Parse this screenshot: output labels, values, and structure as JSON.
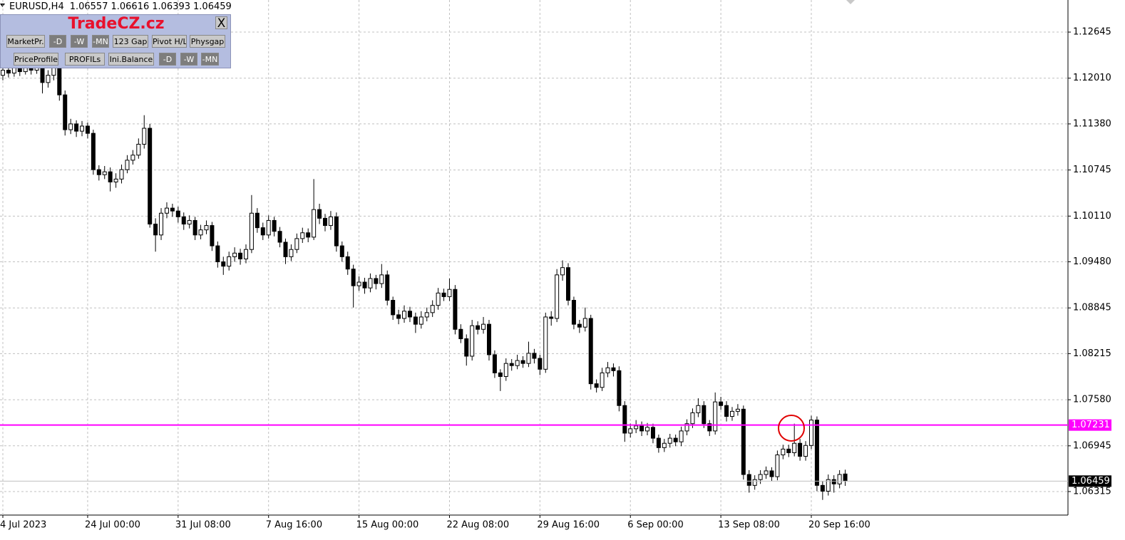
{
  "chart_data": {
    "type": "candlestick",
    "symbol": "EURUSD,H4",
    "ylim": [
      1.05991,
      1.13087
    ],
    "yticks": [
      1.12645,
      {
        "value": 1.1201,
        "label": "1.12010"
      },
      {
        "value": 1.1138,
        "label": "1.11380"
      },
      1.10745,
      {
        "value": 1.1011,
        "label": "1.10110"
      },
      {
        "value": 1.0948,
        "label": "1.09480"
      },
      1.08845,
      1.08215,
      {
        "value": 1.0758,
        "label": "1.07580"
      },
      1.06945,
      1.06315
    ],
    "grid": true,
    "up_color": "#ffffff",
    "down_color": "#000000",
    "outline_color": "#000000",
    "hline": {
      "value": 1.07231,
      "color": "#ff00ff"
    },
    "last_price": {
      "value": 1.06459,
      "color": "#c0c0c0"
    },
    "categories": [
      "4 Jul 2023",
      null,
      null,
      null,
      null,
      null,
      null,
      null,
      null,
      null,
      null,
      null,
      null,
      null,
      null,
      "24 Jul 00:00",
      null,
      null,
      null,
      null,
      null,
      null,
      null,
      null,
      null,
      null,
      null,
      null,
      null,
      null,
      null,
      "31 Jul 08:00",
      null,
      null,
      null,
      null,
      null,
      null,
      null,
      null,
      null,
      null,
      null,
      null,
      null,
      null,
      null,
      "7 Aug 16:00",
      null,
      null,
      null,
      null,
      null,
      null,
      null,
      null,
      null,
      null,
      null,
      null,
      null,
      null,
      null,
      "15 Aug 00:00",
      null,
      null,
      null,
      null,
      null,
      null,
      null,
      null,
      null,
      null,
      null,
      null,
      null,
      null,
      null,
      "22 Aug 08:00",
      null,
      null,
      null,
      null,
      null,
      null,
      null,
      null,
      null,
      null,
      null,
      null,
      null,
      null,
      null,
      "29 Aug 16:00",
      null,
      null,
      null,
      null,
      null,
      null,
      null,
      null,
      null,
      null,
      null,
      null,
      null,
      null,
      null,
      "6 Sep 00:00",
      null,
      null,
      null,
      null,
      null,
      null,
      null,
      null,
      null,
      null,
      null,
      null,
      null,
      null,
      null,
      "13 Sep 08:00",
      null,
      null,
      null,
      null,
      null,
      null,
      null,
      null,
      null,
      null,
      null,
      null,
      null,
      null,
      null,
      "20 Sep 16:00",
      null,
      null,
      null,
      null,
      null,
      null
    ],
    "ohlc": [
      [
        1.1205,
        1.122,
        1.1198,
        1.1212
      ],
      [
        1.1212,
        1.1218,
        1.1202,
        1.1208
      ],
      [
        1.1208,
        1.1222,
        1.1203,
        1.1215
      ],
      [
        1.1215,
        1.1221,
        1.1204,
        1.121
      ],
      [
        1.121,
        1.1226,
        1.1206,
        1.1218
      ],
      [
        1.1218,
        1.1224,
        1.1206,
        1.1212
      ],
      [
        1.1212,
        1.1228,
        1.1207,
        1.122
      ],
      [
        1.122,
        1.1224,
        1.118,
        1.1195
      ],
      [
        1.1195,
        1.1212,
        1.1188,
        1.1205
      ],
      [
        1.1205,
        1.1222,
        1.1198,
        1.1215
      ],
      [
        1.1215,
        1.122,
        1.117,
        1.1178
      ],
      [
        1.1178,
        1.1184,
        1.1122,
        1.113
      ],
      [
        1.113,
        1.1145,
        1.1124,
        1.1138
      ],
      [
        1.1138,
        1.1143,
        1.112,
        1.1128
      ],
      [
        1.1128,
        1.1142,
        1.1121,
        1.1135
      ],
      [
        1.1135,
        1.114,
        1.1118,
        1.1125
      ],
      [
        1.1125,
        1.113,
        1.1068,
        1.1075
      ],
      [
        1.1075,
        1.1081,
        1.106,
        1.1068
      ],
      [
        1.1068,
        1.108,
        1.1062,
        1.1072
      ],
      [
        1.1072,
        1.1078,
        1.1045,
        1.1058
      ],
      [
        1.1058,
        1.107,
        1.105,
        1.1062
      ],
      [
        1.1062,
        1.1082,
        1.1056,
        1.1075
      ],
      [
        1.1075,
        1.1095,
        1.107,
        1.1088
      ],
      [
        1.1088,
        1.1102,
        1.1082,
        1.1095
      ],
      [
        1.1095,
        1.1118,
        1.109,
        1.111
      ],
      [
        1.111,
        1.115,
        1.1104,
        1.1132
      ],
      [
        1.1132,
        1.1138,
        1.0995,
        1.1
      ],
      [
        1.1,
        1.1008,
        1.0962,
        1.0985
      ],
      [
        1.0985,
        1.1022,
        1.0978,
        1.1015
      ],
      [
        1.1015,
        1.103,
        1.1008,
        1.1022
      ],
      [
        1.1022,
        1.1028,
        1.101,
        1.1018
      ],
      [
        1.1018,
        1.1024,
        1.1002,
        1.101
      ],
      [
        1.101,
        1.1016,
        1.0992,
        1.1
      ],
      [
        1.1,
        1.1012,
        1.0994,
        1.1005
      ],
      [
        1.1005,
        1.101,
        1.0978,
        1.0985
      ],
      [
        1.0985,
        1.0999,
        1.0979,
        1.0992
      ],
      [
        1.0992,
        1.1005,
        1.0986,
        1.0998
      ],
      [
        1.0998,
        1.1003,
        1.0963,
        1.097
      ],
      [
        1.097,
        1.0976,
        1.094,
        1.0948
      ],
      [
        1.0948,
        1.0955,
        1.093,
        1.0942
      ],
      [
        1.0942,
        1.0962,
        1.0936,
        1.0955
      ],
      [
        1.0955,
        1.0968,
        1.0948,
        1.096
      ],
      [
        1.096,
        1.0966,
        1.0944,
        1.0952
      ],
      [
        1.0952,
        1.0972,
        1.0946,
        1.0965
      ],
      [
        1.0965,
        1.104,
        1.096,
        1.1015
      ],
      [
        1.1015,
        1.1022,
        1.0988,
        1.0995
      ],
      [
        1.0995,
        1.1002,
        1.0978,
        1.0985
      ],
      [
        1.0985,
        1.1012,
        1.098,
        1.1005
      ],
      [
        1.1005,
        1.101,
        1.0983,
        1.099
      ],
      [
        1.099,
        1.0996,
        1.0968,
        1.0975
      ],
      [
        1.0975,
        1.098,
        1.0945,
        1.0955
      ],
      [
        1.0955,
        1.0972,
        1.0949,
        1.0965
      ],
      [
        1.0965,
        1.0987,
        1.096,
        1.098
      ],
      [
        1.098,
        1.0995,
        1.0974,
        1.0988
      ],
      [
        1.0988,
        1.0994,
        1.0975,
        1.0982
      ],
      [
        1.0982,
        1.1062,
        1.0978,
        1.102
      ],
      [
        1.102,
        1.1028,
        1.1,
        1.1008
      ],
      [
        1.1008,
        1.1014,
        1.099,
        1.0998
      ],
      [
        1.0998,
        1.1018,
        1.0992,
        1.101
      ],
      [
        1.101,
        1.1016,
        1.0962,
        1.097
      ],
      [
        1.097,
        1.0976,
        1.0948,
        1.0955
      ],
      [
        1.0955,
        1.0962,
        1.093,
        1.0938
      ],
      [
        1.0938,
        1.0944,
        1.0885,
        1.0915
      ],
      [
        1.0915,
        1.0928,
        1.0908,
        1.092
      ],
      [
        1.092,
        1.0926,
        1.0904,
        1.0912
      ],
      [
        1.0912,
        1.0932,
        1.0906,
        1.0925
      ],
      [
        1.0925,
        1.093,
        1.091,
        1.0918
      ],
      [
        1.0918,
        1.0945,
        1.0912,
        1.093
      ],
      [
        1.093,
        1.0936,
        1.0888,
        1.0895
      ],
      [
        1.0895,
        1.09,
        1.0868,
        1.0875
      ],
      [
        1.0875,
        1.0882,
        1.0862,
        1.087
      ],
      [
        1.087,
        1.0888,
        1.0864,
        1.088
      ],
      [
        1.088,
        1.0886,
        1.0865,
        1.0872
      ],
      [
        1.0872,
        1.0878,
        1.085,
        1.0862
      ],
      [
        1.0862,
        1.088,
        1.0856,
        1.0872
      ],
      [
        1.0872,
        1.0885,
        1.0866,
        1.0878
      ],
      [
        1.0878,
        1.0895,
        1.0872,
        1.0888
      ],
      [
        1.0888,
        1.0912,
        1.0882,
        1.0905
      ],
      [
        1.0905,
        1.0911,
        1.0894,
        1.09
      ],
      [
        1.09,
        1.0925,
        1.0894,
        1.091
      ],
      [
        1.091,
        1.0916,
        1.0848,
        1.0855
      ],
      [
        1.0855,
        1.0862,
        1.0836,
        1.0842
      ],
      [
        1.0842,
        1.0848,
        1.0805,
        1.0818
      ],
      [
        1.0818,
        1.0868,
        1.0812,
        1.086
      ],
      [
        1.086,
        1.0866,
        1.0848,
        1.0855
      ],
      [
        1.0855,
        1.0872,
        1.0849,
        1.0862
      ],
      [
        1.0862,
        1.0868,
        1.0812,
        1.082
      ],
      [
        1.082,
        1.0826,
        1.0788,
        1.0795
      ],
      [
        1.0795,
        1.08,
        1.077,
        1.079
      ],
      [
        1.079,
        1.0815,
        1.0784,
        1.0808
      ],
      [
        1.0808,
        1.0814,
        1.0798,
        1.0805
      ],
      [
        1.0805,
        1.082,
        1.08,
        1.0812
      ],
      [
        1.0812,
        1.0818,
        1.0802,
        1.0808
      ],
      [
        1.0808,
        1.0838,
        1.0803,
        1.0822
      ],
      [
        1.0822,
        1.0828,
        1.0808,
        1.0815
      ],
      [
        1.0815,
        1.082,
        1.0792,
        1.08
      ],
      [
        1.08,
        1.0878,
        1.0795,
        1.0872
      ],
      [
        1.0872,
        1.088,
        1.086,
        1.087
      ],
      [
        1.087,
        1.0938,
        1.0865,
        1.093
      ],
      [
        1.093,
        1.095,
        1.0922,
        1.094
      ],
      [
        1.094,
        1.0946,
        1.0888,
        1.0895
      ],
      [
        1.0895,
        1.09,
        1.0855,
        1.0862
      ],
      [
        1.0862,
        1.0868,
        1.085,
        1.0858
      ],
      [
        1.0858,
        1.0885,
        1.0852,
        1.087
      ],
      [
        1.087,
        1.0875,
        1.0772,
        1.078
      ],
      [
        1.078,
        1.0786,
        1.0768,
        1.0775
      ],
      [
        1.0775,
        1.0802,
        1.077,
        1.0795
      ],
      [
        1.0795,
        1.081,
        1.0789,
        1.0802
      ],
      [
        1.0802,
        1.0808,
        1.079,
        1.0798
      ],
      [
        1.0798,
        1.0804,
        1.0742,
        1.075
      ],
      [
        1.075,
        1.0756,
        1.07,
        1.0712
      ],
      [
        1.0712,
        1.0725,
        1.0706,
        1.0718
      ],
      [
        1.0718,
        1.073,
        1.0712,
        1.0722
      ],
      [
        1.0722,
        1.0728,
        1.0708,
        1.0715
      ],
      [
        1.0715,
        1.0726,
        1.0709,
        1.072
      ],
      [
        1.072,
        1.0725,
        1.0698,
        1.0705
      ],
      [
        1.0705,
        1.071,
        1.0685,
        1.0692
      ],
      [
        1.0692,
        1.0704,
        1.0686,
        1.0698
      ],
      [
        1.0698,
        1.0711,
        1.0692,
        1.0705
      ],
      [
        1.0705,
        1.071,
        1.0694,
        1.07
      ],
      [
        1.07,
        1.0721,
        1.0694,
        1.0715
      ],
      [
        1.0715,
        1.0731,
        1.0709,
        1.0725
      ],
      [
        1.0725,
        1.0746,
        1.0719,
        1.074
      ],
      [
        1.074,
        1.076,
        1.0734,
        1.075
      ],
      [
        1.075,
        1.0756,
        1.0719,
        1.0725
      ],
      [
        1.0725,
        1.073,
        1.0708,
        1.0715
      ],
      [
        1.0715,
        1.0768,
        1.071,
        1.0755
      ],
      [
        1.0755,
        1.0762,
        1.0744,
        1.075
      ],
      [
        1.075,
        1.0756,
        1.0728,
        1.0735
      ],
      [
        1.0735,
        1.0748,
        1.0729,
        1.0742
      ],
      [
        1.0742,
        1.0752,
        1.0736,
        1.0745
      ],
      [
        1.0745,
        1.075,
        1.0648,
        1.0655
      ],
      [
        1.0655,
        1.0661,
        1.063,
        1.064
      ],
      [
        1.064,
        1.0654,
        1.0634,
        1.0648
      ],
      [
        1.0648,
        1.0661,
        1.0642,
        1.0655
      ],
      [
        1.0655,
        1.0666,
        1.0649,
        1.066
      ],
      [
        1.066,
        1.0665,
        1.0646,
        1.0652
      ],
      [
        1.0652,
        1.0688,
        1.0647,
        1.0682
      ],
      [
        1.0682,
        1.0696,
        1.0676,
        1.069
      ],
      [
        1.069,
        1.0696,
        1.0679,
        1.0685
      ],
      [
        1.0685,
        1.0725,
        1.068,
        1.0698
      ],
      [
        1.0698,
        1.0704,
        1.0674,
        1.068
      ],
      [
        1.068,
        1.0701,
        1.0674,
        1.0695
      ],
      [
        1.0695,
        1.0736,
        1.069,
        1.073
      ],
      [
        1.073,
        1.0735,
        1.0632,
        1.064
      ],
      [
        1.064,
        1.0646,
        1.062,
        1.0632
      ],
      [
        1.0632,
        1.0655,
        1.0626,
        1.0648
      ],
      [
        1.0648,
        1.0654,
        1.063,
        1.0642
      ],
      [
        1.0642,
        1.0661,
        1.0636,
        1.0655
      ],
      [
        1.06557,
        1.06616,
        1.06393,
        1.06459
      ]
    ]
  },
  "panel": {
    "title": "TradeCZ.cz",
    "close": "X",
    "row1": [
      "MarketPr.",
      "-D",
      "-W",
      "-MN",
      "123 Gap",
      "Pivot H/L",
      "Physgap"
    ],
    "row2": [
      "PriceProfile",
      "PROFILs",
      "Ini.Balance",
      "-D",
      "-W",
      "-MN"
    ]
  }
}
